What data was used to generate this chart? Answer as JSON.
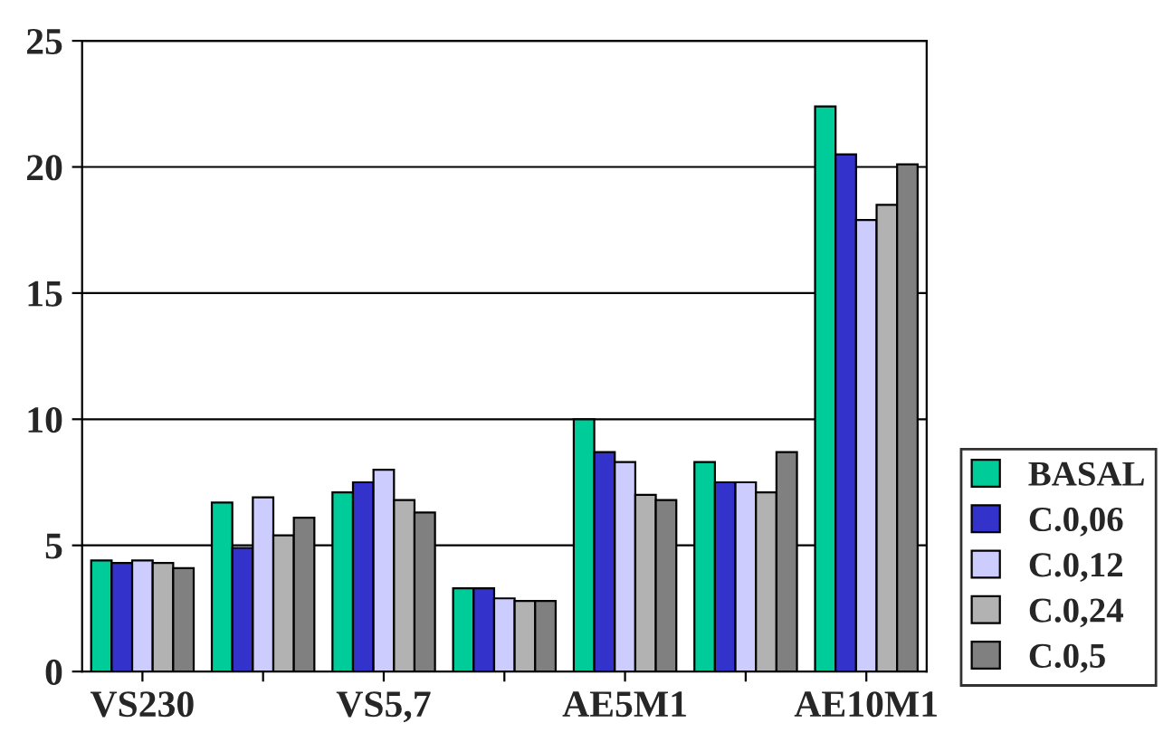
{
  "chart_data": {
    "type": "bar",
    "categories": [
      "VS230",
      null,
      "VS5,7",
      null,
      "AE5M1",
      null,
      "AE10M1"
    ],
    "series": [
      {
        "name": "BASAL",
        "color": "#00cc99",
        "values": [
          4.4,
          6.7,
          7.1,
          3.3,
          10.0,
          8.3,
          22.4
        ]
      },
      {
        "name": "C.0,06",
        "color": "#3333cc",
        "values": [
          4.3,
          4.9,
          7.5,
          3.3,
          8.7,
          7.5,
          20.5
        ]
      },
      {
        "name": "C.0,12",
        "color": "#ccccff",
        "values": [
          4.4,
          6.9,
          8.0,
          2.9,
          8.3,
          7.5,
          17.9
        ]
      },
      {
        "name": "C.0,24",
        "color": "#b2b2b2",
        "values": [
          4.3,
          5.4,
          6.8,
          2.8,
          7.0,
          7.1,
          18.5
        ]
      },
      {
        "name": "C.0,5",
        "color": "#808080",
        "values": [
          4.1,
          6.1,
          6.3,
          2.8,
          6.8,
          8.7,
          20.1
        ]
      }
    ],
    "ylim": [
      0,
      25
    ],
    "yticks": [
      0,
      5,
      10,
      15,
      20,
      25
    ],
    "grid": "y",
    "legend": "bottom right"
  }
}
